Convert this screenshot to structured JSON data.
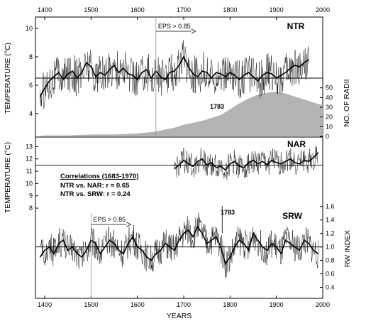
{
  "chart_data": {
    "type": "line",
    "xlabel": "YEARS",
    "xlim": [
      1380,
      2000
    ],
    "x_ticks": [
      "1400",
      "1500",
      "1600",
      "1700",
      "1800",
      "1900",
      "2000"
    ],
    "panels": [
      {
        "label": "NTR",
        "ylabel": "TEMPERATURE (°C)",
        "ylim": [
          2.5,
          10.6
        ],
        "y_ticks": [
          "4",
          "6",
          "8",
          "10"
        ],
        "mean_line": 6.5,
        "eps_note": "EPS > 0.85",
        "eps_year": 1640,
        "series": [
          {
            "x": [
              1390,
              1400,
              1410,
              1420,
              1430,
              1440,
              1450,
              1460,
              1470,
              1480,
              1490,
              1500,
              1510,
              1520,
              1530,
              1540,
              1550,
              1560,
              1570,
              1580,
              1590,
              1600,
              1610,
              1620,
              1630,
              1640,
              1650,
              1660,
              1670,
              1680,
              1690,
              1700,
              1710,
              1720,
              1730,
              1740,
              1750,
              1760,
              1770,
              1780,
              1790,
              1800,
              1810,
              1820,
              1830,
              1840,
              1850,
              1860,
              1870,
              1880,
              1890,
              1900,
              1910,
              1920,
              1930,
              1940,
              1950,
              1960,
              1970
            ],
            "values": [
              5.2,
              5.8,
              6.3,
              6.6,
              6.9,
              6.4,
              6.8,
              7.0,
              6.5,
              6.9,
              7.6,
              7.3,
              6.6,
              6.9,
              6.7,
              7.1,
              7.4,
              6.9,
              7.2,
              6.8,
              6.7,
              6.4,
              6.9,
              7.1,
              6.5,
              7.0,
              6.6,
              6.4,
              6.9,
              7.0,
              7.4,
              8.0,
              7.3,
              6.8,
              6.6,
              7.0,
              6.9,
              6.5,
              6.9,
              6.8,
              6.6,
              6.9,
              6.7,
              6.4,
              6.7,
              6.9,
              6.6,
              6.3,
              6.7,
              6.9,
              6.8,
              6.5,
              6.7,
              6.9,
              7.2,
              7.4,
              7.3,
              7.6,
              7.8
            ]
          }
        ],
        "right_axis": {
          "ylabel": "NO. OF RADII",
          "ylim": [
            0,
            60
          ],
          "y_ticks": [
            "0",
            "10",
            "20",
            "30",
            "40",
            "50"
          ],
          "x": [
            1380,
            1400,
            1450,
            1500,
            1550,
            1600,
            1640,
            1660,
            1680,
            1700,
            1720,
            1740,
            1760,
            1780,
            1800,
            1820,
            1840,
            1860,
            1880,
            1900,
            1920,
            1940,
            1960,
            1980,
            2000
          ],
          "values": [
            0,
            1,
            1,
            2,
            2,
            3,
            5,
            7,
            9,
            12,
            14,
            16,
            19,
            22,
            28,
            34,
            39,
            43,
            45,
            46,
            44,
            41,
            38,
            35,
            32
          ]
        },
        "annotation": "1783"
      },
      {
        "label": "NAR",
        "ylabel": "TEMPERATURE (°C)",
        "ylim": [
          7.6,
          13.6
        ],
        "y_ticks": [
          "8",
          "9",
          "10",
          "11",
          "12",
          "13"
        ],
        "mean_line": 11.5,
        "series": [
          {
            "x": [
              1680,
              1690,
              1700,
              1710,
              1720,
              1730,
              1740,
              1750,
              1760,
              1770,
              1780,
              1790,
              1800,
              1810,
              1820,
              1830,
              1840,
              1850,
              1860,
              1870,
              1880,
              1890,
              1900,
              1910,
              1920,
              1930,
              1940,
              1950,
              1960,
              1970,
              1980,
              1990
            ],
            "values": [
              11.2,
              11.5,
              11.9,
              11.6,
              11.4,
              11.8,
              12.0,
              11.5,
              11.7,
              11.3,
              11.4,
              11.1,
              11.6,
              11.8,
              11.4,
              11.3,
              11.7,
              11.9,
              11.6,
              11.8,
              11.5,
              11.9,
              11.7,
              11.6,
              11.8,
              12.0,
              11.7,
              11.6,
              11.9,
              11.8,
              12.1,
              12.5
            ]
          }
        ],
        "annotation": "1783",
        "correlations_title": "Correlations (1683-1970)",
        "correlations": [
          "NTR vs. NAR: r = 0.65",
          "NTR vs. SRW: r = 0.24"
        ]
      },
      {
        "label": "SRW",
        "ylabel": "RW INDEX",
        "ylim": [
          0.3,
          1.65
        ],
        "y_ticks": [
          "0.4",
          "0.6",
          "0.8",
          "1.0",
          "1.2",
          "1.4",
          "1.6"
        ],
        "mean_line": 1.0,
        "eps_note": "EPS > 0.85",
        "eps_year": 1500,
        "series": [
          {
            "x": [
              1390,
              1400,
              1410,
              1420,
              1430,
              1440,
              1450,
              1460,
              1470,
              1480,
              1490,
              1500,
              1510,
              1520,
              1530,
              1540,
              1550,
              1560,
              1570,
              1580,
              1590,
              1600,
              1610,
              1620,
              1630,
              1640,
              1650,
              1660,
              1670,
              1680,
              1690,
              1700,
              1710,
              1720,
              1730,
              1740,
              1750,
              1760,
              1770,
              1780,
              1790,
              1800,
              1810,
              1820,
              1830,
              1840,
              1850,
              1860,
              1870,
              1880,
              1890,
              1900,
              1910,
              1920,
              1930,
              1940,
              1950,
              1960,
              1970,
              1980,
              1990
            ],
            "values": [
              0.85,
              0.95,
              1.0,
              0.9,
              1.05,
              1.1,
              0.95,
              1.0,
              0.9,
              0.85,
              0.95,
              1.1,
              1.05,
              0.9,
              1.0,
              1.1,
              1.05,
              0.95,
              0.9,
              1.05,
              1.15,
              1.0,
              0.95,
              0.85,
              0.8,
              0.9,
              0.95,
              1.05,
              1.0,
              0.95,
              1.1,
              1.2,
              1.25,
              1.15,
              1.3,
              1.2,
              1.05,
              1.1,
              1.15,
              1.0,
              0.75,
              0.85,
              1.0,
              1.1,
              1.05,
              0.95,
              1.2,
              1.1,
              1.0,
              0.95,
              1.05,
              1.0,
              0.9,
              1.1,
              1.05,
              1.0,
              0.95,
              1.1,
              1.05,
              0.95,
              0.9
            ]
          }
        ],
        "annotation": "1783"
      }
    ]
  }
}
